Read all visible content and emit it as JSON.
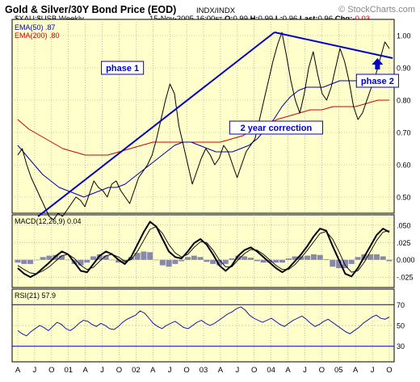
{
  "header": {
    "title": "Gold & Silver/30Y Bond Price (EOD)",
    "exchange": "INDX/INDX",
    "watermark": "© StockCharts.com",
    "date": "15-Nov-2005 16:00",
    "tz": "ET",
    "o_label": "O:",
    "o_value": "0.99",
    "h_label": "H:",
    "h_value": "0.99",
    "l_label": "L:",
    "l_value": "0.96",
    "last_label": "Last:",
    "last_value": "0.96",
    "chg_label": "Chg:",
    "chg_value": "-0.03"
  },
  "colors": {
    "panel_bg": "#ffffcc",
    "price": "#000000",
    "ema50": "#0000aa",
    "ema200": "#cc0000",
    "annotation": "#0000cc",
    "macd_hist": "#8888aa",
    "macd_signal": "#000000",
    "rsi": "#0000aa"
  },
  "chart_data": {
    "type": "line",
    "symbol_label": "$XAU:$USB Weekly",
    "x_ticks": [
      "A",
      "J",
      "O",
      "01",
      "A",
      "J",
      "O",
      "02",
      "A",
      "J",
      "O",
      "03",
      "A",
      "J",
      "O",
      "04",
      "A",
      "J",
      "O",
      "05",
      "A",
      "J",
      "O"
    ],
    "price_panel": {
      "ylim": [
        0.45,
        1.05
      ],
      "y_ticks": [
        "1.00",
        "0.90",
        "0.80",
        "0.70",
        "0.60",
        "0.50"
      ],
      "y_tick_values": [
        1.0,
        0.9,
        0.8,
        0.7,
        0.6,
        0.5
      ],
      "series": [
        {
          "name": "$XAU:$USB Weekly",
          "style": "price",
          "values": [
            0.63,
            0.65,
            0.6,
            0.56,
            0.53,
            0.5,
            0.47,
            0.44,
            0.43,
            0.45,
            0.44,
            0.46,
            0.48,
            0.5,
            0.49,
            0.47,
            0.51,
            0.55,
            0.53,
            0.52,
            0.5,
            0.54,
            0.55,
            0.52,
            0.5,
            0.48,
            0.52,
            0.56,
            0.58,
            0.6,
            0.63,
            0.68,
            0.74,
            0.8,
            0.85,
            0.82,
            0.72,
            0.66,
            0.6,
            0.54,
            0.58,
            0.62,
            0.65,
            0.63,
            0.6,
            0.62,
            0.66,
            0.64,
            0.6,
            0.56,
            0.6,
            0.64,
            0.66,
            0.68,
            0.74,
            0.8,
            0.86,
            0.92,
            0.97,
            1.01,
            0.94,
            0.86,
            0.8,
            0.76,
            0.82,
            0.9,
            0.95,
            0.88,
            0.82,
            0.8,
            0.84,
            0.9,
            0.96,
            0.92,
            0.86,
            0.78,
            0.74,
            0.76,
            0.8,
            0.84,
            0.88,
            0.93,
            0.98,
            0.96
          ]
        },
        {
          "name": "EMA(50)",
          "value": ".87",
          "style": "ema50",
          "values": [
            0.66,
            0.63,
            0.6,
            0.57,
            0.55,
            0.53,
            0.52,
            0.51,
            0.5,
            0.51,
            0.52,
            0.53,
            0.53,
            0.54,
            0.56,
            0.58,
            0.6,
            0.62,
            0.64,
            0.66,
            0.67,
            0.67,
            0.66,
            0.65,
            0.64,
            0.64,
            0.64,
            0.65,
            0.66,
            0.68,
            0.71,
            0.74,
            0.78,
            0.81,
            0.83,
            0.84,
            0.84,
            0.84,
            0.85,
            0.86,
            0.86,
            0.86,
            0.85,
            0.86,
            0.87,
            0.87
          ]
        },
        {
          "name": "EMA(200)",
          "value": ".80",
          "style": "ema200",
          "values": [
            0.74,
            0.71,
            0.69,
            0.67,
            0.65,
            0.64,
            0.63,
            0.63,
            0.63,
            0.64,
            0.65,
            0.66,
            0.67,
            0.67,
            0.67,
            0.67,
            0.67,
            0.67,
            0.67,
            0.68,
            0.69,
            0.71,
            0.72,
            0.74,
            0.75,
            0.76,
            0.77,
            0.77,
            0.78,
            0.78,
            0.78,
            0.79,
            0.8,
            0.8
          ]
        }
      ],
      "annotations": [
        {
          "text": "phase 1",
          "x": 6.2,
          "y": 0.9
        },
        {
          "text": "2 year correction",
          "x": 15.3,
          "y": 0.715
        },
        {
          "text": "phase 2",
          "x": 21.3,
          "y": 0.86
        }
      ],
      "trendlines": [
        {
          "from": [
            1.2,
            0.44
          ],
          "to": [
            15.2,
            1.01
          ]
        },
        {
          "from": [
            15.2,
            1.01
          ],
          "to": [
            22.2,
            0.93
          ]
        }
      ]
    },
    "macd_panel": {
      "label": "MACD(12,26,9)",
      "value": "0.04",
      "ylim": [
        -0.04,
        0.065
      ],
      "y_ticks": [
        ".050",
        ".025",
        "0.000",
        "-.025"
      ],
      "y_tick_values": [
        0.05,
        0.025,
        0.0,
        -0.025
      ],
      "macd": [
        -0.012,
        -0.02,
        -0.025,
        -0.02,
        -0.012,
        -0.004,
        0.005,
        0.012,
        0.008,
        -0.004,
        -0.016,
        -0.018,
        -0.006,
        0.006,
        0.012,
        0.008,
        0.0,
        -0.006,
        0.004,
        0.022,
        0.04,
        0.055,
        0.048,
        0.03,
        0.012,
        0.004,
        0.002,
        0.012,
        0.024,
        0.03,
        0.022,
        0.008,
        -0.008,
        -0.016,
        -0.008,
        0.006,
        0.014,
        0.018,
        0.012,
        0.004,
        -0.004,
        -0.012,
        -0.018,
        -0.012,
        -0.002,
        0.008,
        0.02,
        0.034,
        0.045,
        0.042,
        0.02,
        0.0,
        -0.02,
        -0.024,
        -0.012,
        0.004,
        0.02,
        0.036,
        0.045,
        0.04
      ],
      "signal": [
        -0.008,
        -0.014,
        -0.019,
        -0.02,
        -0.016,
        -0.01,
        -0.002,
        0.006,
        0.008,
        0.002,
        -0.008,
        -0.014,
        -0.011,
        -0.002,
        0.006,
        0.008,
        0.004,
        -0.002,
        0.0,
        0.012,
        0.028,
        0.044,
        0.048,
        0.038,
        0.022,
        0.01,
        0.004,
        0.008,
        0.018,
        0.026,
        0.025,
        0.014,
        0.0,
        -0.01,
        -0.01,
        0.0,
        0.009,
        0.015,
        0.014,
        0.008,
        0.0,
        -0.008,
        -0.014,
        -0.014,
        -0.007,
        0.003,
        0.014,
        0.026,
        0.038,
        0.041,
        0.03,
        0.012,
        -0.008,
        -0.018,
        -0.016,
        -0.004,
        0.012,
        0.028,
        0.04,
        0.042
      ]
    },
    "rsi_panel": {
      "label": "RSI(21)",
      "value": "57.9",
      "ylim": [
        15,
        85
      ],
      "y_ticks": [
        "70",
        "50",
        "30"
      ],
      "y_tick_values": [
        70,
        50,
        30
      ],
      "values": [
        45,
        42,
        40,
        44,
        47,
        50,
        48,
        45,
        49,
        53,
        51,
        47,
        45,
        48,
        52,
        55,
        54,
        51,
        49,
        52,
        50,
        47,
        46,
        49,
        53,
        56,
        58,
        60,
        64,
        62,
        57,
        52,
        49,
        47,
        50,
        52,
        54,
        51,
        48,
        47,
        50,
        53,
        55,
        52,
        50,
        52,
        55,
        58,
        61,
        63,
        66,
        68,
        65,
        60,
        57,
        55,
        53,
        55,
        57,
        54,
        51,
        49,
        52,
        55,
        57,
        59,
        56,
        52,
        49,
        51,
        54,
        56,
        53,
        50,
        47,
        44,
        42,
        45,
        48,
        52,
        55,
        58,
        60,
        57,
        56,
        58
      ]
    }
  }
}
